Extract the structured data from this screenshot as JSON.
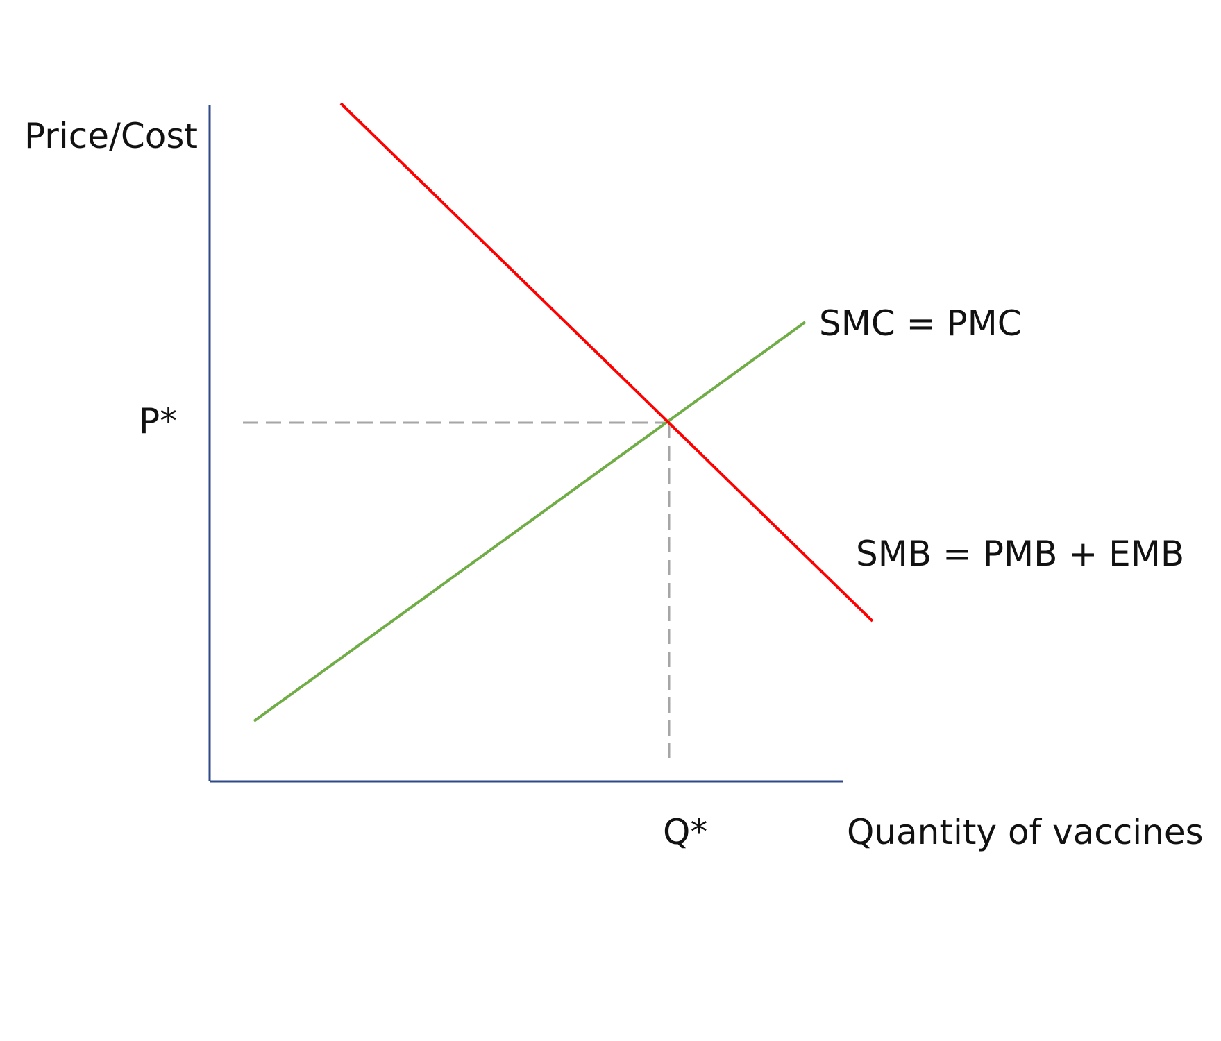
{
  "labels": {
    "y_axis": "Price/Cost",
    "x_axis": "Quantity of vaccines",
    "p_star": "P*",
    "q_star": "Q*",
    "supply_curve": "SMC = PMC",
    "demand_curve": "SMB = PMB + EMB"
  },
  "colors": {
    "axis": "#2f4a8a",
    "supply": "#70ad47",
    "demand": "#ff0000",
    "guide": "#a6a6a6"
  }
}
